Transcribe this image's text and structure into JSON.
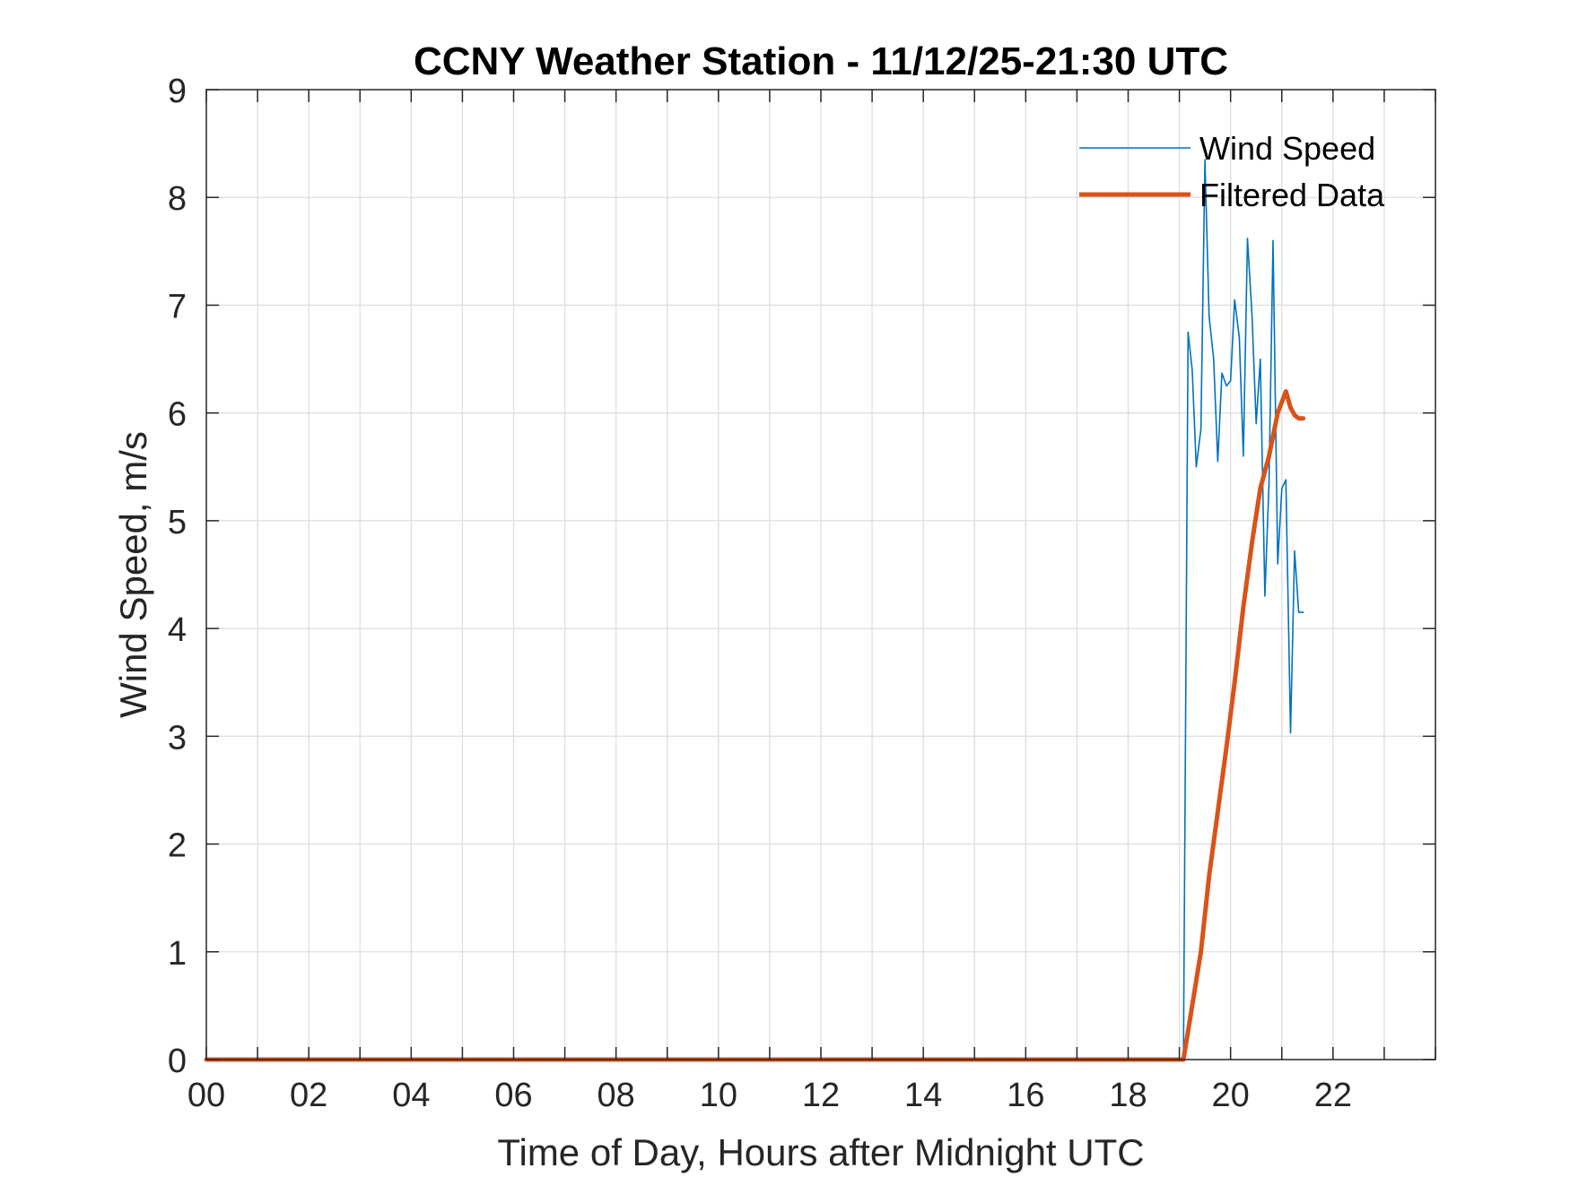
{
  "chart_data": {
    "type": "line",
    "title": "CCNY Weather Station -  11/12/25-21:30 UTC",
    "xlabel": "Time of Day, Hours after Midnight UTC",
    "ylabel": "Wind Speed, m/s",
    "xlim": [
      0,
      24
    ],
    "ylim": [
      0,
      9
    ],
    "x_ticks": [
      0,
      2,
      4,
      6,
      8,
      10,
      12,
      14,
      16,
      18,
      20,
      22
    ],
    "x_tick_labels": [
      "00",
      "02",
      "04",
      "06",
      "08",
      "10",
      "12",
      "14",
      "16",
      "18",
      "20",
      "22"
    ],
    "y_ticks": [
      0,
      1,
      2,
      3,
      4,
      5,
      6,
      7,
      8,
      9
    ],
    "y_tick_labels": [
      "0",
      "1",
      "2",
      "3",
      "4",
      "5",
      "6",
      "7",
      "8",
      "9"
    ],
    "x_minor_grid_step": 1,
    "grid": true,
    "legend_position": "top-right",
    "series": [
      {
        "name": "Wind Speed",
        "color": "#0072BD",
        "line_style": "thin",
        "x": [
          0.0,
          19.08,
          19.17,
          19.25,
          19.33,
          19.42,
          19.5,
          19.58,
          19.67,
          19.75,
          19.83,
          19.92,
          20.0,
          20.08,
          20.17,
          20.25,
          20.33,
          20.42,
          20.5,
          20.58,
          20.67,
          20.75,
          20.83,
          20.92,
          21.0,
          21.08,
          21.17,
          21.25,
          21.33,
          21.42
        ],
        "y": [
          0.0,
          0.0,
          6.75,
          6.4,
          5.5,
          5.85,
          8.35,
          6.9,
          6.5,
          5.55,
          6.37,
          6.25,
          6.3,
          7.05,
          6.7,
          5.6,
          7.62,
          6.9,
          5.9,
          6.5,
          4.3,
          5.35,
          7.6,
          4.6,
          5.3,
          5.38,
          3.03,
          4.72,
          4.15,
          4.15
        ]
      },
      {
        "name": "Filtered Data",
        "color": "#D95319",
        "line_style": "thick",
        "x": [
          0.0,
          19.08,
          19.25,
          19.42,
          19.58,
          19.75,
          19.92,
          20.08,
          20.25,
          20.42,
          20.58,
          20.75,
          20.92,
          21.08,
          21.17,
          21.25,
          21.33,
          21.42
        ],
        "y": [
          0.0,
          0.0,
          0.5,
          1.0,
          1.7,
          2.3,
          2.9,
          3.5,
          4.2,
          4.8,
          5.3,
          5.6,
          6.0,
          6.2,
          6.05,
          5.98,
          5.95,
          5.95
        ]
      }
    ]
  }
}
